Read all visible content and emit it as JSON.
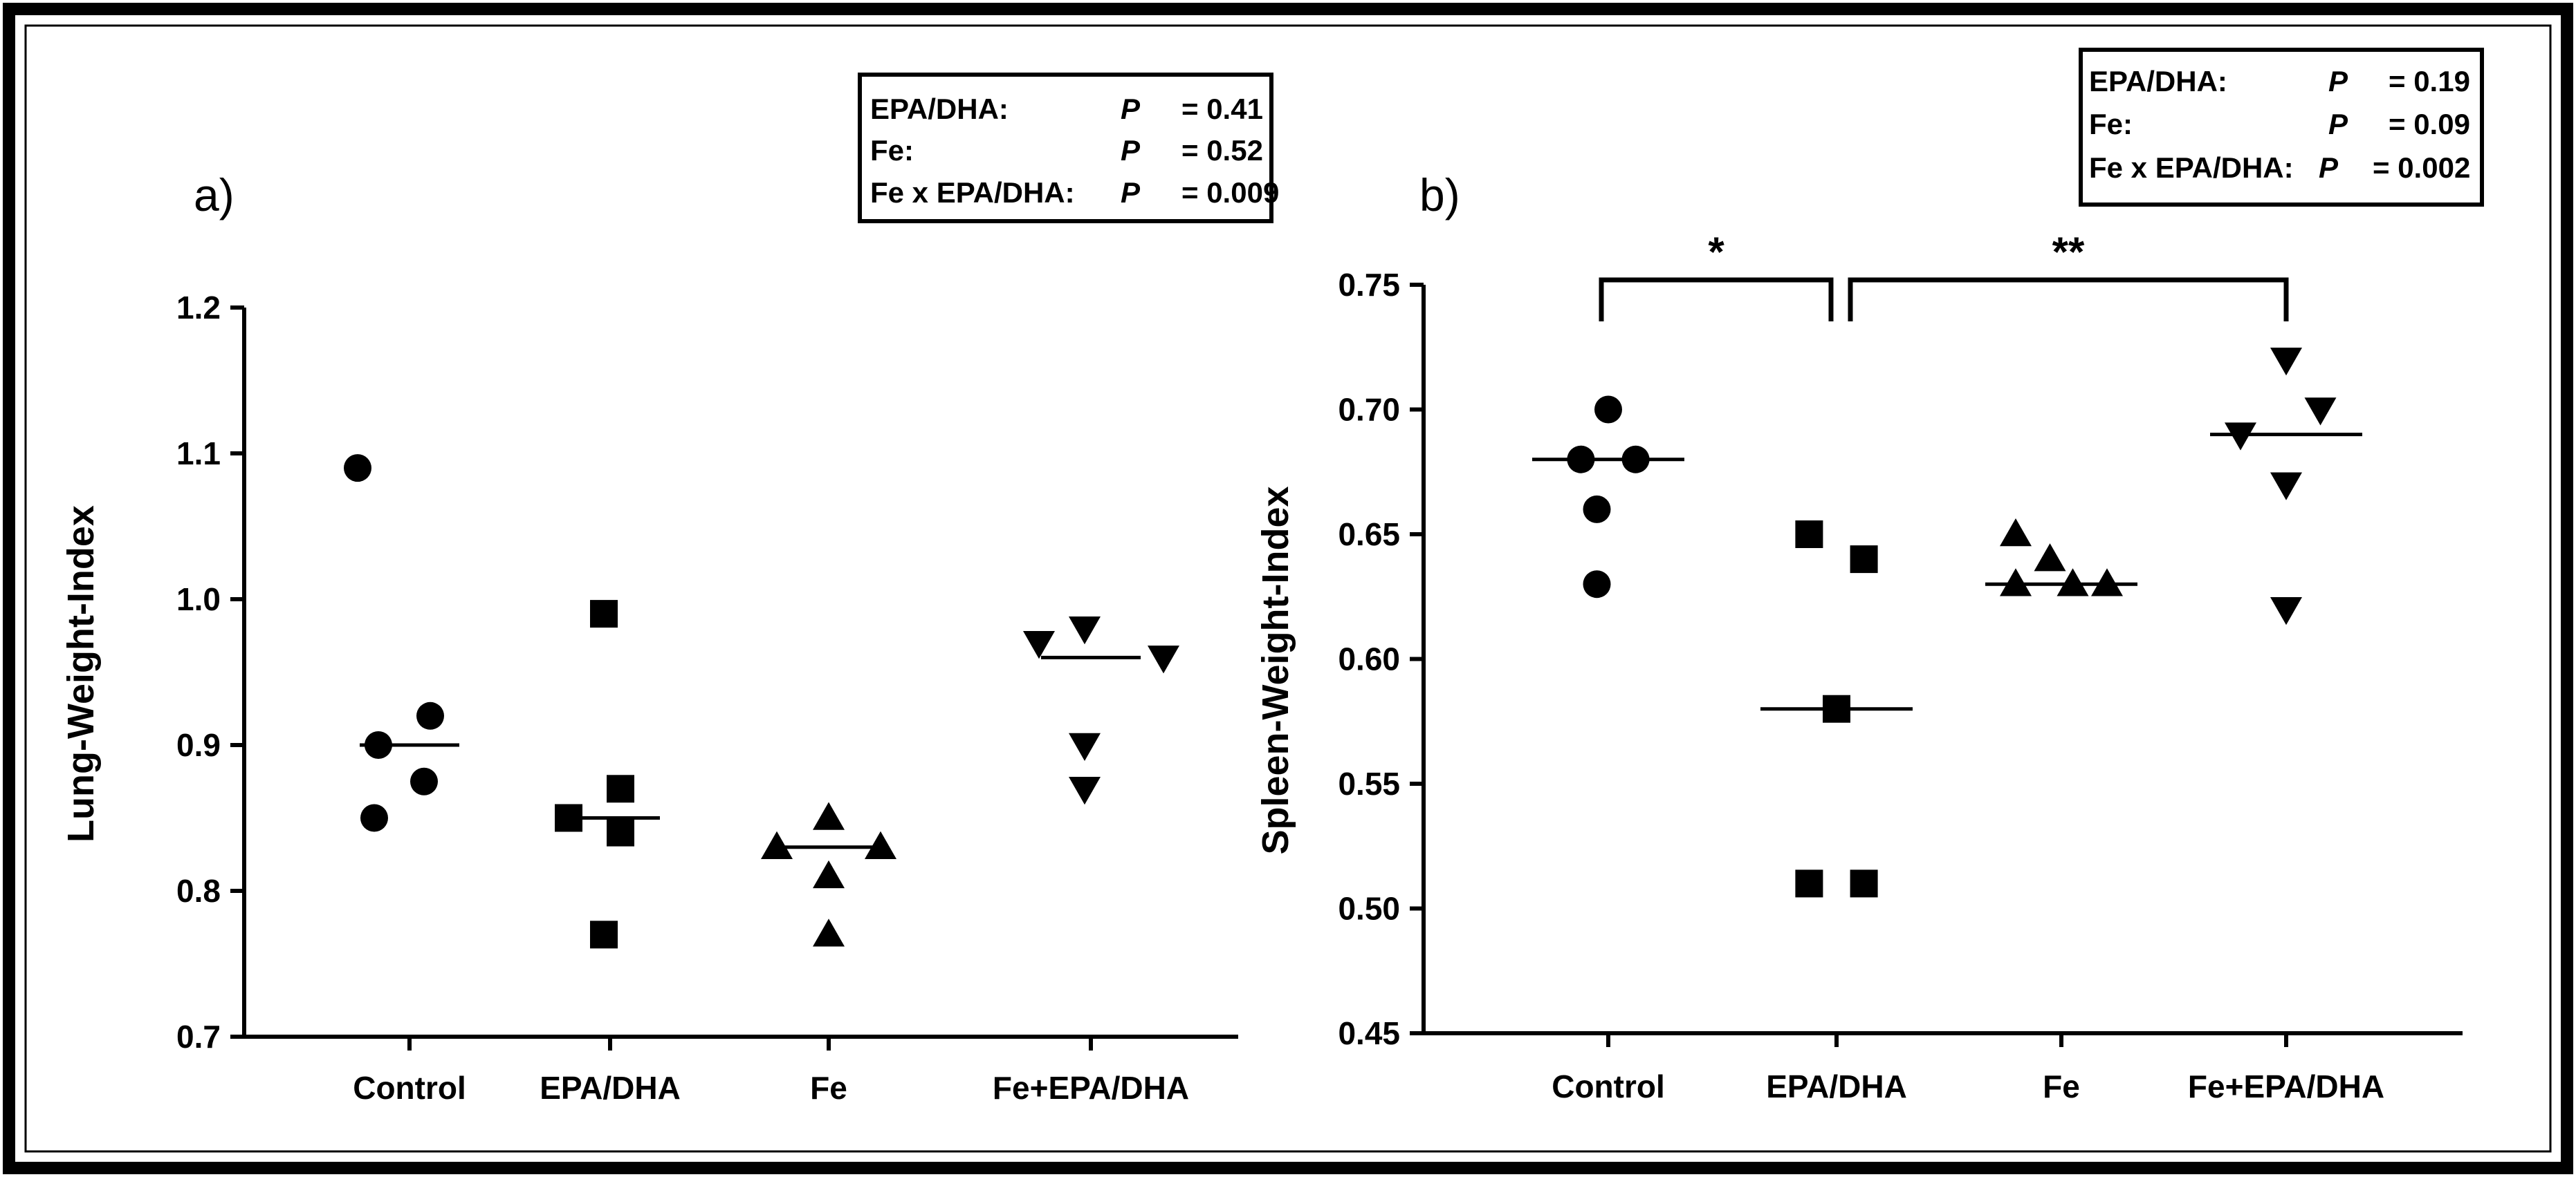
{
  "chart_data": [
    {
      "type": "scatter",
      "panel_label": "a)",
      "ylabel": "Lung-Weight-Index",
      "ylim": [
        0.7,
        1.2
      ],
      "yticks": [
        "0.7",
        "0.8",
        "0.9",
        "1.0",
        "1.1",
        "1.2"
      ],
      "categories": [
        "Control",
        "EPA/DHA",
        "Fe",
        "Fe+EPA/DHA"
      ],
      "series": [
        {
          "marker": "circle",
          "points": [
            [
              -0.25,
              1.09
            ],
            [
              -0.15,
              0.9
            ],
            [
              0.1,
              0.92
            ],
            [
              0.07,
              0.875
            ],
            [
              -0.17,
              0.85
            ]
          ],
          "median": 0.9
        },
        {
          "marker": "square",
          "points": [
            [
              -0.03,
              0.99
            ],
            [
              0.05,
              0.87
            ],
            [
              -0.2,
              0.85
            ],
            [
              0.05,
              0.84
            ],
            [
              -0.03,
              0.77
            ]
          ],
          "median": 0.85
        },
        {
          "marker": "triangle-up",
          "points": [
            [
              0.0,
              0.85
            ],
            [
              -0.25,
              0.83
            ],
            [
              0.25,
              0.83
            ],
            [
              0.0,
              0.81
            ],
            [
              0.0,
              0.77
            ]
          ],
          "median": 0.83
        },
        {
          "marker": "triangle-down",
          "points": [
            [
              -0.25,
              0.97
            ],
            [
              -0.03,
              0.98
            ],
            [
              0.35,
              0.96
            ],
            [
              -0.03,
              0.9
            ],
            [
              -0.03,
              0.87
            ]
          ],
          "median": 0.96
        }
      ],
      "stats": [
        {
          "label": "EPA/DHA:",
          "p": "P",
          "value": "= 0.41"
        },
        {
          "label": "Fe:",
          "p": "P",
          "value": "= 0.52"
        },
        {
          "label": "Fe x EPA/DHA:",
          "p": "P",
          "value": "= 0.009"
        }
      ]
    },
    {
      "type": "scatter",
      "panel_label": "b)",
      "ylabel": "Spleen-Weight-Index",
      "ylim": [
        0.45,
        0.75
      ],
      "yticks": [
        "0.45",
        "0.50",
        "0.55",
        "0.60",
        "0.65",
        "0.70",
        "0.75"
      ],
      "categories": [
        "Control",
        "EPA/DHA",
        "Fe",
        "Fe+EPA/DHA"
      ],
      "series": [
        {
          "marker": "circle",
          "points": [
            [
              0.0,
              0.7
            ],
            [
              -0.12,
              0.68
            ],
            [
              0.12,
              0.68
            ],
            [
              -0.05,
              0.66
            ],
            [
              -0.05,
              0.63
            ]
          ],
          "median": 0.68
        },
        {
          "marker": "square",
          "points": [
            [
              -0.12,
              0.65
            ],
            [
              0.12,
              0.64
            ],
            [
              0.0,
              0.58
            ],
            [
              -0.12,
              0.51
            ],
            [
              0.12,
              0.51
            ]
          ],
          "median": 0.58
        },
        {
          "marker": "triangle-up",
          "points": [
            [
              -0.2,
              0.65
            ],
            [
              -0.05,
              0.64
            ],
            [
              -0.2,
              0.63
            ],
            [
              0.05,
              0.63
            ],
            [
              0.2,
              0.63
            ]
          ],
          "median": 0.63
        },
        {
          "marker": "triangle-down",
          "points": [
            [
              0.0,
              0.72
            ],
            [
              -0.2,
              0.69
            ],
            [
              0.15,
              0.7
            ],
            [
              0.0,
              0.67
            ],
            [
              0.0,
              0.62
            ]
          ],
          "median": 0.69
        }
      ],
      "brackets": [
        {
          "from": 0,
          "to": 1,
          "label": "*"
        },
        {
          "from": 1,
          "to": 3,
          "label": "**"
        }
      ],
      "stats": [
        {
          "label": "EPA/DHA:",
          "p": "P",
          "value": "= 0.19"
        },
        {
          "label": "Fe:",
          "p": "P",
          "value": "= 0.09"
        },
        {
          "label": "Fe x EPA/DHA:",
          "p": "P",
          "value": "= 0.002"
        }
      ]
    }
  ]
}
